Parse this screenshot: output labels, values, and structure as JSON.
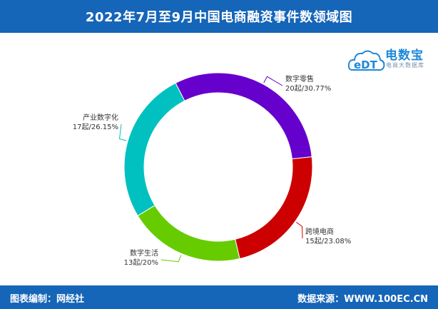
{
  "header": {
    "title": "2022年7月至9月中国电商融资事件数领域图"
  },
  "logo": {
    "name": "电数宝",
    "tagline": "电商大数据库",
    "mark_text": "eDT",
    "color": "#1e88d8"
  },
  "footer": {
    "left": "图表编制：网经社",
    "right": "数据来源：WWW.100EC.CN"
  },
  "colors": {
    "header_bg": "#1565b8"
  },
  "chart_data": {
    "type": "pie",
    "variant": "donut",
    "title": "2022年7月至9月中国电商融资事件数领域图",
    "unit": "起",
    "slices": [
      {
        "name": "数字零售",
        "value": 20,
        "percent": "30.77%",
        "label": "20起/30.77%",
        "color": "#6600cc"
      },
      {
        "name": "跨境电商",
        "value": 15,
        "percent": "23.08%",
        "label": "15起/23.08%",
        "color": "#cc0000"
      },
      {
        "name": "数字生活",
        "value": 13,
        "percent": "20%",
        "label": "13起/20%",
        "color": "#66cc00"
      },
      {
        "name": "产业数字化",
        "value": 17,
        "percent": "26.15%",
        "label": "17起/26.15%",
        "color": "#00c0c0"
      }
    ]
  }
}
